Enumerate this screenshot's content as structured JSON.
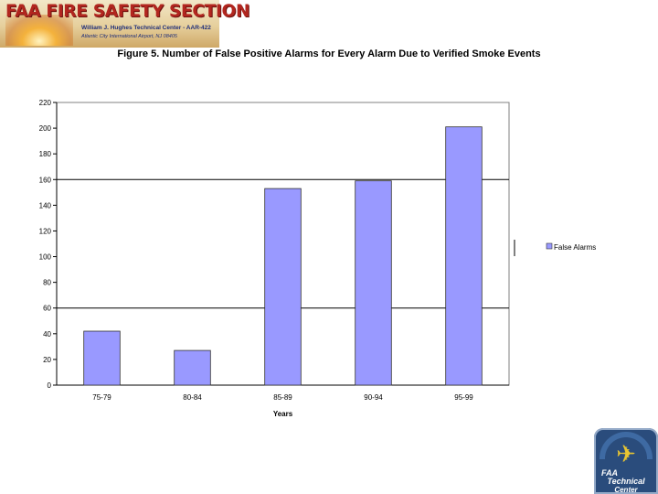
{
  "header": {
    "title": "FAA FIRE SAFETY SECTION",
    "line1": "William J. Hughes Technical Center - AAR-422",
    "line2": "Atlantic City International Airport, NJ 08405"
  },
  "badge": {
    "line1": "FAA",
    "line2": "Technical",
    "line3": "Center"
  },
  "chart_data": {
    "type": "bar",
    "title": "Figure 5. Number of False Positive Alarms for Every Alarm Due to Verified Smoke Events",
    "xlabel": "Years",
    "ylabel": "",
    "categories": [
      "75-79",
      "80-84",
      "85-89",
      "90-94",
      "95-99"
    ],
    "series": [
      {
        "name": "False Alarms",
        "values": [
          42,
          27,
          153,
          159,
          201
        ]
      }
    ],
    "ylim": [
      0,
      220
    ],
    "yticks": [
      0,
      20,
      40,
      60,
      80,
      100,
      120,
      140,
      160,
      180,
      200,
      220
    ],
    "grid_lines_at": [
      60,
      160
    ],
    "legend": "right",
    "colors": {
      "bar": "#9999ff",
      "bar_edge": "#333333",
      "axis": "#000000",
      "grid": "#000000"
    }
  }
}
